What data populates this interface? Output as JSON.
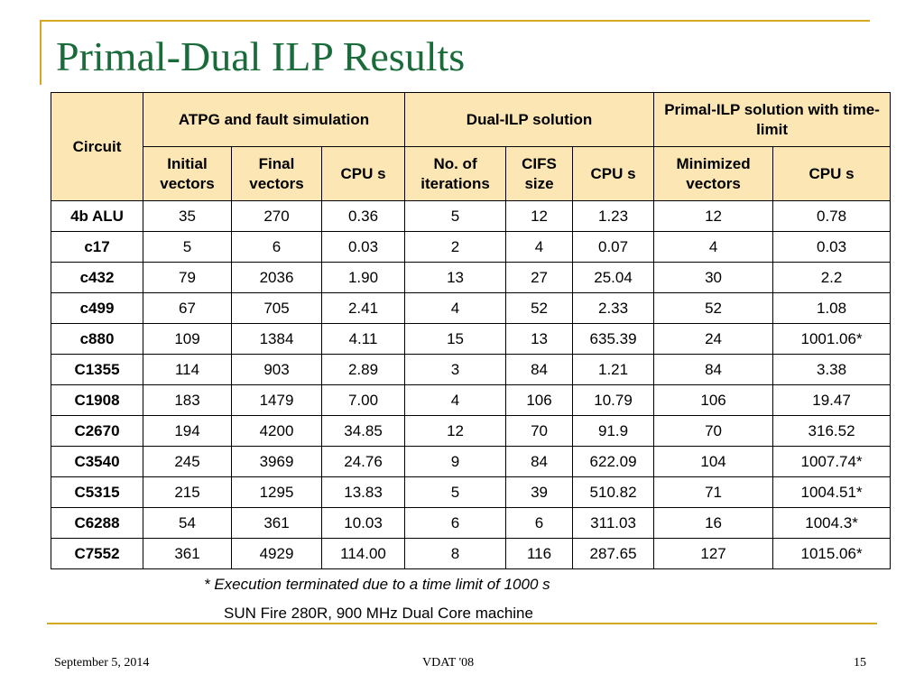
{
  "slide": {
    "title": "Primal-Dual ILP Results",
    "note_execution": "* Execution terminated due to a time limit of 1000 s",
    "note_machine": "SUN Fire 280R, 900 MHz Dual Core machine"
  },
  "table": {
    "groups": {
      "circuit": "Circuit",
      "atpg": "ATPG and fault simulation",
      "dual": "Dual-ILP solution",
      "primal": "Primal-ILP solution with time-limit"
    },
    "subheaders": [
      "Initial vectors",
      "Final vectors",
      "CPU s",
      "No. of iterations",
      "CIFS size",
      "CPU s",
      "Minimized vectors",
      "CPU s"
    ],
    "rows": [
      {
        "circuit": "4b ALU",
        "values": [
          "35",
          "270",
          "0.36",
          "5",
          "12",
          "1.23",
          "12",
          "0.78"
        ]
      },
      {
        "circuit": "c17",
        "values": [
          "5",
          "6",
          "0.03",
          "2",
          "4",
          "0.07",
          "4",
          "0.03"
        ]
      },
      {
        "circuit": "c432",
        "values": [
          "79",
          "2036",
          "1.90",
          "13",
          "27",
          "25.04",
          "30",
          "2.2"
        ]
      },
      {
        "circuit": "c499",
        "values": [
          "67",
          "705",
          "2.41",
          "4",
          "52",
          "2.33",
          "52",
          "1.08"
        ]
      },
      {
        "circuit": "c880",
        "values": [
          "109",
          "1384",
          "4.11",
          "15",
          "13",
          "635.39",
          "24",
          "1001.06*"
        ]
      },
      {
        "circuit": "C1355",
        "values": [
          "114",
          "903",
          "2.89",
          "3",
          "84",
          "1.21",
          "84",
          "3.38"
        ]
      },
      {
        "circuit": "C1908",
        "values": [
          "183",
          "1479",
          "7.00",
          "4",
          "106",
          "10.79",
          "106",
          "19.47"
        ]
      },
      {
        "circuit": "C2670",
        "values": [
          "194",
          "4200",
          "34.85",
          "12",
          "70",
          "91.9",
          "70",
          "316.52"
        ]
      },
      {
        "circuit": "C3540",
        "values": [
          "245",
          "3969",
          "24.76",
          "9",
          "84",
          "622.09",
          "104",
          "1007.74*"
        ]
      },
      {
        "circuit": "C5315",
        "values": [
          "215",
          "1295",
          "13.83",
          "5",
          "39",
          "510.82",
          "71",
          "1004.51*"
        ]
      },
      {
        "circuit": "C6288",
        "values": [
          "54",
          "361",
          "10.03",
          "6",
          "6",
          "311.03",
          "16",
          "1004.3*"
        ]
      },
      {
        "circuit": "C7552",
        "values": [
          "361",
          "4929",
          "114.00",
          "8",
          "116",
          "287.65",
          "127",
          "1015.06*"
        ]
      }
    ]
  },
  "footer": {
    "date": "September 5, 2014",
    "venue": "VDAT '08",
    "page": "15"
  },
  "colors": {
    "title": "#1a6b3a",
    "header_fill": "#fbe6b4",
    "accent_rule": "#d4a820"
  }
}
